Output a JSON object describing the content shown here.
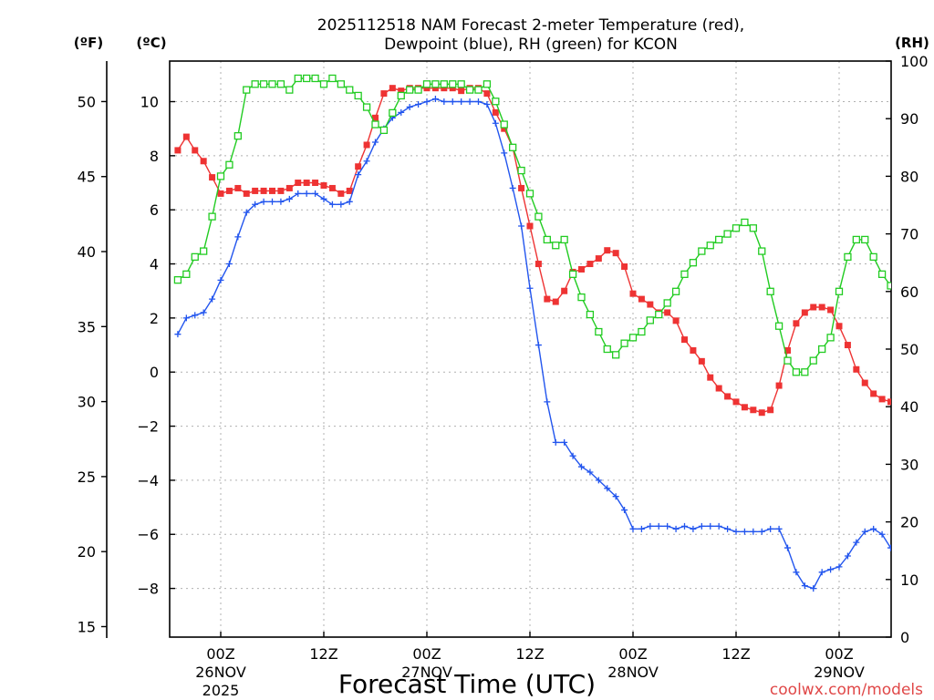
{
  "chart_data": {
    "type": "line",
    "title_line1": "2025112518 NAM Forecast 2-meter Temperature (red),",
    "title_line2": "Dewpoint (blue), RH (green) for KCON",
    "left_outer_unit": "(ºF)",
    "left_inner_unit": "(ºC)",
    "right_unit": "(RH)",
    "xlabel": "Forecast Time (UTC)",
    "credit": "coolwx.com/models",
    "x_range_hours": [
      -5,
      65
    ],
    "ylim_c": [
      -9.8,
      11.5
    ],
    "ylim_rh": [
      0,
      100
    ],
    "ylim_f": [
      14.3,
      52.7
    ],
    "ticks_c": [
      "10",
      "8",
      "6",
      "4",
      "2",
      "0",
      "−2",
      "−4",
      "−6",
      "−8"
    ],
    "tick_values_c": [
      10,
      8,
      6,
      4,
      2,
      0,
      -2,
      -4,
      -6,
      -8
    ],
    "ticks_f": [
      "50",
      "45",
      "40",
      "35",
      "30",
      "25",
      "20",
      "15"
    ],
    "tick_values_f": [
      50,
      45,
      40,
      35,
      30,
      25,
      20,
      15
    ],
    "ticks_rh": [
      "100",
      "90",
      "80",
      "70",
      "60",
      "50",
      "40",
      "30",
      "20",
      "10",
      "0"
    ],
    "tick_values_rh": [
      100,
      90,
      80,
      70,
      60,
      50,
      40,
      30,
      20,
      10,
      0
    ],
    "x_ticks": [
      {
        "hour": 0,
        "line1": "00Z",
        "line2": "26NOV",
        "line3": "2025"
      },
      {
        "hour": 12,
        "line1": "12Z",
        "line2": "",
        "line3": ""
      },
      {
        "hour": 24,
        "line1": "00Z",
        "line2": "27NOV",
        "line3": ""
      },
      {
        "hour": 36,
        "line1": "12Z",
        "line2": "",
        "line3": ""
      },
      {
        "hour": 48,
        "line1": "00Z",
        "line2": "28NOV",
        "line3": ""
      },
      {
        "hour": 60,
        "line1": "12Z",
        "line2": "",
        "line3": ""
      },
      {
        "hour": 72,
        "line1": "00Z",
        "line2": "29NOV",
        "line3": ""
      }
    ],
    "series": [
      {
        "name": "Temperature",
        "unit": "°C",
        "axis": "left",
        "color": "#ee3333",
        "marker": "filled-square",
        "points": [
          [
            -5,
            8.2
          ],
          [
            -4,
            8.7
          ],
          [
            -3,
            8.2
          ],
          [
            -2,
            7.8
          ],
          [
            -1,
            7.2
          ],
          [
            0,
            6.6
          ],
          [
            1,
            6.7
          ],
          [
            2,
            6.8
          ],
          [
            3,
            6.6
          ],
          [
            4,
            6.7
          ],
          [
            5,
            6.7
          ],
          [
            6,
            6.7
          ],
          [
            7,
            6.7
          ],
          [
            8,
            6.8
          ],
          [
            9,
            7.0
          ],
          [
            10,
            7.0
          ],
          [
            11,
            7.0
          ],
          [
            12,
            6.9
          ],
          [
            13,
            6.8
          ],
          [
            14,
            6.6
          ],
          [
            15,
            6.7
          ],
          [
            16,
            7.6
          ],
          [
            17,
            8.4
          ],
          [
            18,
            9.4
          ],
          [
            19,
            10.3
          ],
          [
            20,
            10.5
          ],
          [
            21,
            10.4
          ],
          [
            22,
            10.5
          ],
          [
            23,
            10.5
          ],
          [
            24,
            10.5
          ],
          [
            25,
            10.5
          ],
          [
            26,
            10.5
          ],
          [
            27,
            10.5
          ],
          [
            28,
            10.4
          ],
          [
            29,
            10.5
          ],
          [
            30,
            10.5
          ],
          [
            31,
            10.3
          ],
          [
            32,
            9.6
          ],
          [
            33,
            9.0
          ],
          [
            34,
            8.3
          ],
          [
            35,
            6.8
          ],
          [
            36,
            5.4
          ],
          [
            37,
            4.0
          ],
          [
            38,
            2.7
          ],
          [
            39,
            2.6
          ],
          [
            40,
            3.0
          ],
          [
            41,
            3.7
          ],
          [
            42,
            3.8
          ],
          [
            43,
            4.0
          ],
          [
            44,
            4.2
          ],
          [
            45,
            4.5
          ],
          [
            46,
            4.4
          ],
          [
            47,
            3.9
          ],
          [
            48,
            2.9
          ],
          [
            49,
            2.7
          ],
          [
            50,
            2.5
          ],
          [
            51,
            2.2
          ],
          [
            52,
            2.2
          ],
          [
            53,
            1.9
          ],
          [
            54,
            1.2
          ],
          [
            55,
            0.8
          ],
          [
            56,
            0.4
          ],
          [
            57,
            -0.2
          ],
          [
            58,
            -0.6
          ],
          [
            59,
            -0.9
          ],
          [
            60,
            -1.1
          ],
          [
            61,
            -1.3
          ],
          [
            62,
            -1.4
          ],
          [
            63,
            -1.5
          ],
          [
            64,
            -1.4
          ],
          [
            65,
            -0.5
          ],
          [
            66,
            0.8
          ],
          [
            67,
            1.8
          ],
          [
            68,
            2.2
          ],
          [
            69,
            2.4
          ],
          [
            70,
            2.4
          ],
          [
            71,
            2.3
          ],
          [
            72,
            1.7
          ],
          [
            73,
            1.0
          ],
          [
            74,
            0.1
          ],
          [
            75,
            -0.4
          ],
          [
            76,
            -0.8
          ],
          [
            77,
            -1.0
          ],
          [
            78,
            -1.1
          ],
          [
            79,
            -1.1
          ],
          [
            80,
            -1.2
          ],
          [
            81,
            -1.4
          ],
          [
            82,
            -1.8
          ]
        ]
      },
      {
        "name": "Dewpoint",
        "unit": "°C",
        "axis": "left",
        "color": "#2255ee",
        "marker": "plus",
        "points": [
          [
            -5,
            1.4
          ],
          [
            -4,
            2.0
          ],
          [
            -3,
            2.1
          ],
          [
            -2,
            2.2
          ],
          [
            -1,
            2.7
          ],
          [
            0,
            3.4
          ],
          [
            1,
            4.0
          ],
          [
            2,
            5.0
          ],
          [
            3,
            5.9
          ],
          [
            4,
            6.2
          ],
          [
            5,
            6.3
          ],
          [
            6,
            6.3
          ],
          [
            7,
            6.3
          ],
          [
            8,
            6.4
          ],
          [
            9,
            6.6
          ],
          [
            10,
            6.6
          ],
          [
            11,
            6.6
          ],
          [
            12,
            6.4
          ],
          [
            13,
            6.2
          ],
          [
            14,
            6.2
          ],
          [
            15,
            6.3
          ],
          [
            16,
            7.3
          ],
          [
            17,
            7.8
          ],
          [
            18,
            8.5
          ],
          [
            19,
            9.0
          ],
          [
            20,
            9.4
          ],
          [
            21,
            9.6
          ],
          [
            22,
            9.8
          ],
          [
            23,
            9.9
          ],
          [
            24,
            10.0
          ],
          [
            25,
            10.1
          ],
          [
            26,
            10.0
          ],
          [
            27,
            10.0
          ],
          [
            28,
            10.0
          ],
          [
            29,
            10.0
          ],
          [
            30,
            10.0
          ],
          [
            31,
            9.9
          ],
          [
            32,
            9.2
          ],
          [
            33,
            8.1
          ],
          [
            34,
            6.8
          ],
          [
            35,
            5.4
          ],
          [
            36,
            3.1
          ],
          [
            37,
            1.0
          ],
          [
            38,
            -1.1
          ],
          [
            39,
            -2.6
          ],
          [
            40,
            -2.6
          ],
          [
            41,
            -3.1
          ],
          [
            42,
            -3.5
          ],
          [
            43,
            -3.7
          ],
          [
            44,
            -4.0
          ],
          [
            45,
            -4.3
          ],
          [
            46,
            -4.6
          ],
          [
            47,
            -5.1
          ],
          [
            48,
            -5.8
          ],
          [
            49,
            -5.8
          ],
          [
            50,
            -5.7
          ],
          [
            51,
            -5.7
          ],
          [
            52,
            -5.7
          ],
          [
            53,
            -5.8
          ],
          [
            54,
            -5.7
          ],
          [
            55,
            -5.8
          ],
          [
            56,
            -5.7
          ],
          [
            57,
            -5.7
          ],
          [
            58,
            -5.7
          ],
          [
            59,
            -5.8
          ],
          [
            60,
            -5.9
          ],
          [
            61,
            -5.9
          ],
          [
            62,
            -5.9
          ],
          [
            63,
            -5.9
          ],
          [
            64,
            -5.8
          ],
          [
            65,
            -5.8
          ],
          [
            66,
            -6.5
          ],
          [
            67,
            -7.4
          ],
          [
            68,
            -7.9
          ],
          [
            69,
            -8.0
          ],
          [
            70,
            -7.4
          ],
          [
            71,
            -7.3
          ],
          [
            72,
            -7.2
          ],
          [
            73,
            -6.8
          ],
          [
            74,
            -6.3
          ],
          [
            75,
            -5.9
          ],
          [
            76,
            -5.8
          ],
          [
            77,
            -6.0
          ],
          [
            78,
            -6.5
          ],
          [
            79,
            -7.1
          ],
          [
            80,
            -7.6
          ],
          [
            81,
            -8.2
          ],
          [
            82,
            -8.8
          ]
        ]
      },
      {
        "name": "RH",
        "unit": "%",
        "axis": "right",
        "color": "#22cc22",
        "marker": "open-square",
        "points": [
          [
            -5,
            62
          ],
          [
            -4,
            63
          ],
          [
            -3,
            66
          ],
          [
            -2,
            67
          ],
          [
            -1,
            73
          ],
          [
            0,
            80
          ],
          [
            1,
            82
          ],
          [
            2,
            87
          ],
          [
            3,
            95
          ],
          [
            4,
            96
          ],
          [
            5,
            96
          ],
          [
            6,
            96
          ],
          [
            7,
            96
          ],
          [
            8,
            95
          ],
          [
            9,
            97
          ],
          [
            10,
            97
          ],
          [
            11,
            97
          ],
          [
            12,
            96
          ],
          [
            13,
            97
          ],
          [
            14,
            96
          ],
          [
            15,
            95
          ],
          [
            16,
            94
          ],
          [
            17,
            92
          ],
          [
            18,
            89
          ],
          [
            19,
            88
          ],
          [
            20,
            91
          ],
          [
            21,
            94
          ],
          [
            22,
            95
          ],
          [
            23,
            95
          ],
          [
            24,
            96
          ],
          [
            25,
            96
          ],
          [
            26,
            96
          ],
          [
            27,
            96
          ],
          [
            28,
            96
          ],
          [
            29,
            95
          ],
          [
            30,
            95
          ],
          [
            31,
            96
          ],
          [
            32,
            93
          ],
          [
            33,
            89
          ],
          [
            34,
            85
          ],
          [
            35,
            81
          ],
          [
            36,
            77
          ],
          [
            37,
            73
          ],
          [
            38,
            69
          ],
          [
            39,
            68
          ],
          [
            40,
            69
          ],
          [
            41,
            63
          ],
          [
            42,
            59
          ],
          [
            43,
            56
          ],
          [
            44,
            53
          ],
          [
            45,
            50
          ],
          [
            46,
            49
          ],
          [
            47,
            51
          ],
          [
            48,
            52
          ],
          [
            49,
            53
          ],
          [
            50,
            55
          ],
          [
            51,
            56
          ],
          [
            52,
            58
          ],
          [
            53,
            60
          ],
          [
            54,
            63
          ],
          [
            55,
            65
          ],
          [
            56,
            67
          ],
          [
            57,
            68
          ],
          [
            58,
            69
          ],
          [
            59,
            70
          ],
          [
            60,
            71
          ],
          [
            61,
            72
          ],
          [
            62,
            71
          ],
          [
            63,
            67
          ],
          [
            64,
            60
          ],
          [
            65,
            54
          ],
          [
            66,
            48
          ],
          [
            67,
            46
          ],
          [
            68,
            46
          ],
          [
            69,
            48
          ],
          [
            70,
            50
          ],
          [
            71,
            52
          ],
          [
            72,
            60
          ],
          [
            73,
            66
          ],
          [
            74,
            69
          ],
          [
            75,
            69
          ],
          [
            76,
            66
          ],
          [
            77,
            63
          ],
          [
            78,
            61
          ],
          [
            79,
            60
          ],
          [
            80,
            58
          ],
          [
            81,
            57
          ],
          [
            82,
            57
          ]
        ]
      }
    ]
  }
}
